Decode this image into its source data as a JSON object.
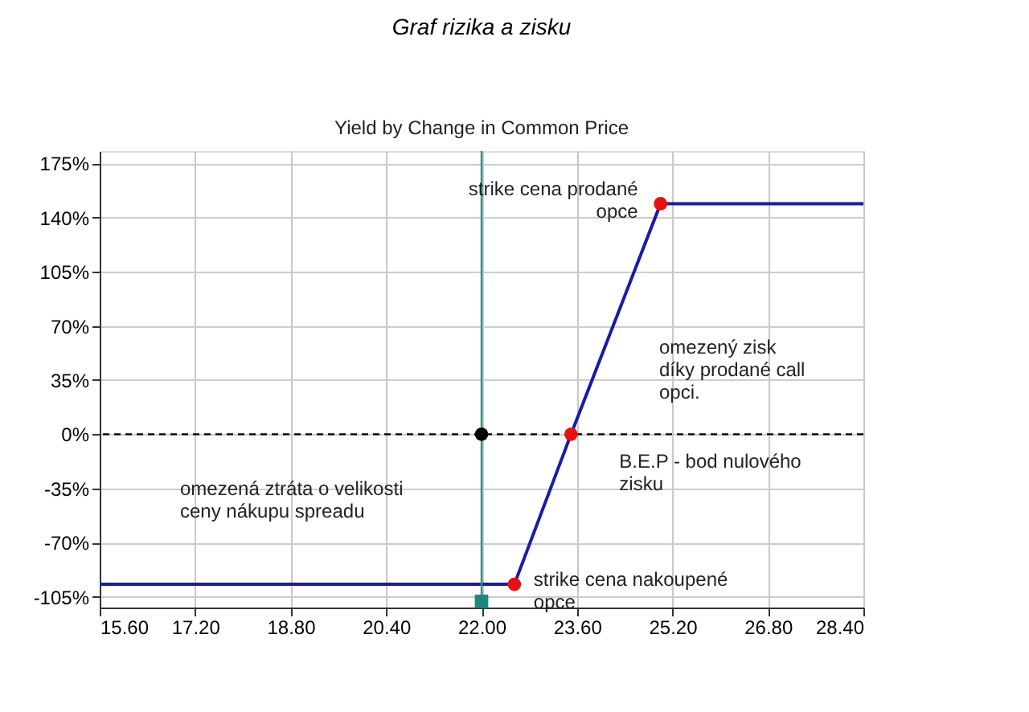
{
  "chart_data": {
    "type": "line",
    "title": "Graf rizika a zisku",
    "subtitle": "Yield by Change in Common Price",
    "series": [
      {
        "color": "#1a1aa8",
        "x": [
          15.6,
          22.55,
          23.5,
          25.0,
          28.4
        ],
        "values": [
          -97,
          -97,
          0,
          149,
          149
        ],
        "marker": "none"
      },
      {
        "type": "scatter",
        "color": "#e81010",
        "x": [
          22.55,
          23.5,
          25.0
        ],
        "values": [
          -97,
          0,
          149
        ],
        "marker": "circle"
      },
      {
        "type": "scatter",
        "color": "#000000",
        "x": [
          22.0
        ],
        "values": [
          0
        ],
        "marker": "circle"
      },
      {
        "type": "scatter",
        "color": "#1a8a80",
        "x": [
          22.0
        ],
        "values": [
          -108
        ],
        "marker": "square"
      }
    ],
    "ref_lines": [
      {
        "axis": "y",
        "value": 0,
        "color": "#000000",
        "line_style": "dashed"
      },
      {
        "axis": "x",
        "value": 22.0,
        "color": "#1a9a8a",
        "line_style": "solid"
      }
    ],
    "annotations": [
      {
        "text": "strike cena nakoupené\nopce",
        "x": 22.55,
        "y": -97
      },
      {
        "text": "B.E.P - bod nulového\nzisku",
        "x": 23.5,
        "y": 0
      },
      {
        "text": "strike cena prodané\nopce",
        "x": 25.0,
        "y": 149
      },
      "omezená ztráta o velikosti\nceny nákupu spreadu",
      "omezený zisk\ndíky prodané call\nopci."
    ],
    "xlim": [
      15.6,
      28.4
    ],
    "xticks": [
      {
        "value": 15.6,
        "label": "15.60"
      },
      {
        "value": 17.2,
        "label": "17.20"
      },
      {
        "value": 18.8,
        "label": "18.80"
      },
      {
        "value": 20.4,
        "label": "20.40"
      },
      {
        "value": 22.0,
        "label": "22.00"
      },
      {
        "value": 23.6,
        "label": "23.60"
      },
      {
        "value": 25.2,
        "label": "25.20"
      },
      {
        "value": 26.8,
        "label": "26.80"
      },
      {
        "value": 28.4,
        "label": "28.40"
      }
    ],
    "ylim": [
      -112,
      183
    ],
    "yticks": [
      {
        "value": -105,
        "label": "-105%"
      },
      {
        "value": -70,
        "label": "-70%"
      },
      {
        "value": -35,
        "label": "-35%"
      },
      {
        "value": 0,
        "label": "0%"
      },
      {
        "value": 35,
        "label": "35%"
      },
      {
        "value": 70,
        "label": "70%"
      },
      {
        "value": 105,
        "label": "105%"
      },
      {
        "value": 140,
        "label": "140%"
      },
      {
        "value": 175,
        "label": "175%"
      }
    ],
    "grid": true
  }
}
